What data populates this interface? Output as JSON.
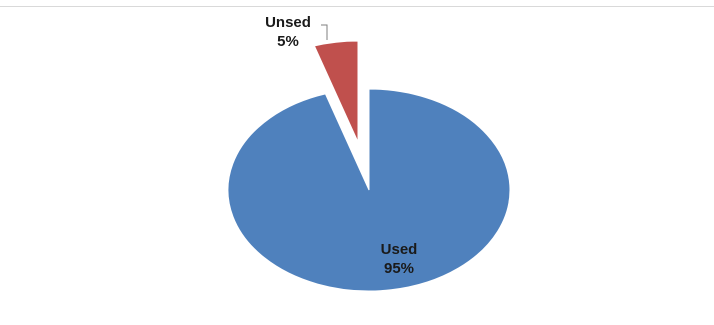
{
  "chart_data": {
    "type": "pie",
    "title": "",
    "slices": [
      {
        "label": "Used",
        "value": 95,
        "display": "95%",
        "color": "#4f81bd"
      },
      {
        "label": "Unsed",
        "value": 5,
        "display": "5%",
        "color": "#c0504d"
      }
    ],
    "exploded": [
      "Unsed"
    ],
    "data_labels": true,
    "legend": "none"
  }
}
